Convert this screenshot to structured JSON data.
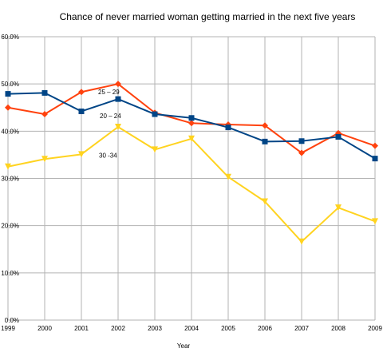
{
  "chart_data": {
    "type": "line",
    "title": "Chance of never married woman getting married in the next five years",
    "xlabel": "Year",
    "ylabel": "",
    "categories": [
      "1999",
      "2000",
      "2001",
      "2002",
      "2003",
      "2004",
      "2005",
      "2006",
      "2007",
      "2008",
      "2009"
    ],
    "y_ticks": [
      "0.0%",
      "10.0%",
      "20.0%",
      "30.0%",
      "40.0%",
      "50.0%",
      "60.0%"
    ],
    "ylim": [
      0,
      60
    ],
    "grid": true,
    "legend": "none (series labeled inline)",
    "series": [
      {
        "name": "25 – 29",
        "color": "#ff420e",
        "marker": "diamond",
        "values": [
          45.0,
          43.6,
          48.3,
          50.0,
          43.9,
          41.7,
          41.4,
          41.2,
          35.4,
          39.6,
          36.9
        ]
      },
      {
        "name": "20 – 24",
        "color": "#004586",
        "marker": "square",
        "values": [
          47.9,
          48.1,
          44.2,
          46.8,
          43.6,
          42.8,
          40.8,
          37.8,
          37.9,
          38.8,
          34.2
        ]
      },
      {
        "name": "30 -34",
        "color": "#ffd320",
        "marker": "triangle-down",
        "values": [
          32.5,
          34.1,
          35.1,
          40.9,
          36.1,
          38.4,
          30.3,
          25.1,
          16.6,
          23.8,
          20.9
        ]
      }
    ]
  }
}
